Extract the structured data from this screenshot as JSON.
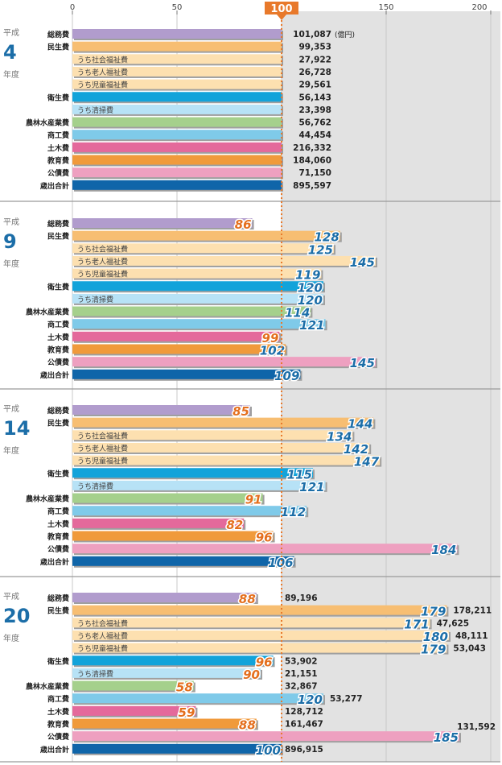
{
  "chart_data": {
    "type": "bar",
    "orientation": "horizontal",
    "xlim": [
      0,
      200
    ],
    "xticks": [
      0,
      50,
      100,
      150,
      200
    ],
    "reference_line": 100,
    "reference_label": "100",
    "unit_label": "(億円)",
    "era_label": "平成",
    "year_suffix": "年度",
    "categories": [
      {
        "label": "総務費",
        "sub": false,
        "color": "#b19ccd"
      },
      {
        "label": "民生費",
        "sub": false,
        "color": "#f7be72"
      },
      {
        "label": "うち社会福祉費",
        "sub": true,
        "color": "#fde0b0"
      },
      {
        "label": "うち老人福祉費",
        "sub": true,
        "color": "#fde0b0"
      },
      {
        "label": "うち児童福祉費",
        "sub": true,
        "color": "#fde0b0"
      },
      {
        "label": "衛生費",
        "sub": false,
        "color": "#12a3da"
      },
      {
        "label": "うち清掃費",
        "sub": true,
        "color": "#b7e2f6"
      },
      {
        "label": "農林水産業費",
        "sub": false,
        "color": "#a5d08c"
      },
      {
        "label": "商工費",
        "sub": false,
        "color": "#7fcae9"
      },
      {
        "label": "土木費",
        "sub": false,
        "color": "#e4699b"
      },
      {
        "label": "教育費",
        "sub": false,
        "color": "#f09a3b"
      },
      {
        "label": "公債費",
        "sub": false,
        "color": "#eea0c0"
      },
      {
        "label": "歳出合計",
        "sub": false,
        "color": "#0f65a9"
      }
    ],
    "panels": [
      {
        "year": "4",
        "index_values": [
          100,
          100,
          100,
          100,
          100,
          100,
          100,
          100,
          100,
          100,
          100,
          100,
          100
        ],
        "show_index": false,
        "amounts": [
          "101,087",
          "99,353",
          "27,922",
          "26,728",
          "29,561",
          "56,143",
          "23,398",
          "56,762",
          "44,454",
          "216,332",
          "184,060",
          "71,150",
          "895,597"
        ]
      },
      {
        "year": "9",
        "index_values": [
          86,
          128,
          125,
          145,
          119,
          120,
          120,
          114,
          121,
          99,
          102,
          145,
          109
        ],
        "show_index": true,
        "amounts": []
      },
      {
        "year": "14",
        "index_values": [
          85,
          144,
          134,
          142,
          147,
          115,
          121,
          91,
          112,
          82,
          96,
          184,
          106
        ],
        "show_index": true,
        "amounts": []
      },
      {
        "year": "20",
        "index_values": [
          88,
          179,
          171,
          180,
          179,
          96,
          90,
          58,
          120,
          59,
          88,
          185,
          100
        ],
        "show_index": true,
        "amounts": [
          "89,196",
          "178,211",
          "47,625",
          "48,111",
          "53,043",
          "53,902",
          "21,151",
          "32,867",
          "53,277",
          "128,712",
          "161,467",
          "131,592",
          "896,915"
        ]
      }
    ]
  },
  "colors": {
    "index_below": "#e46f1e",
    "index_above": "#1c6ea8",
    "reference": "#e8792b",
    "year": "#1c6ea8",
    "background_band": "#e2e2e2"
  }
}
